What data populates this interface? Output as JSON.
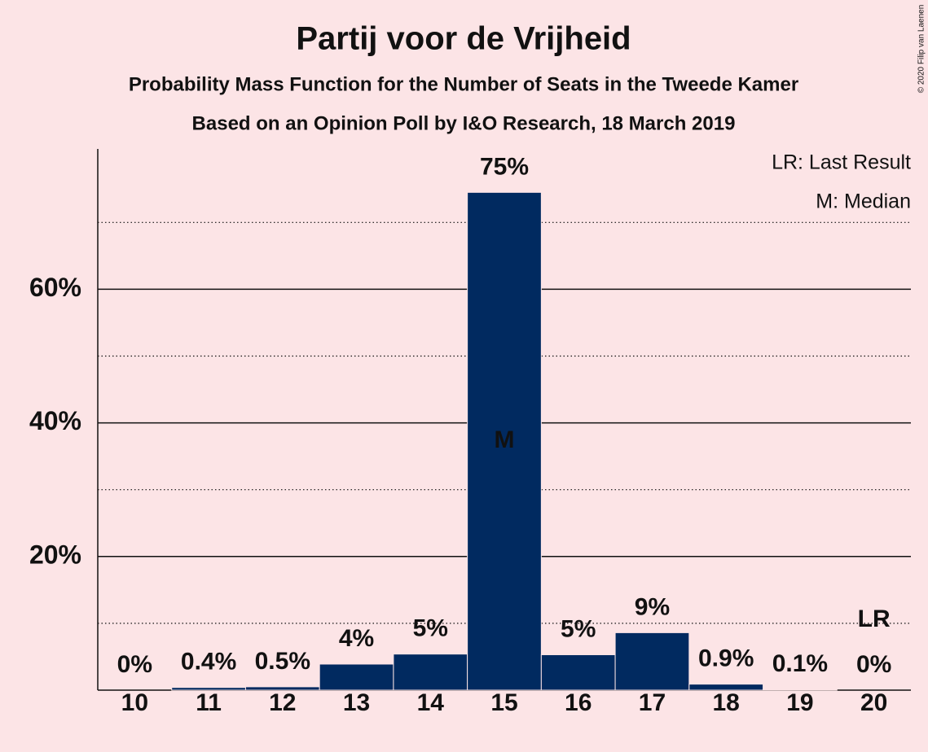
{
  "chart_data": {
    "type": "bar",
    "title": "Partij voor de Vrijheid",
    "subtitle": "Probability Mass Function for the Number of Seats in the Tweede Kamer",
    "subtitle2": "Based on an Opinion Poll by I&O Research, 18 March 2019",
    "categories": [
      "10",
      "11",
      "12",
      "13",
      "14",
      "15",
      "16",
      "17",
      "18",
      "19",
      "20"
    ],
    "values": [
      0,
      0.4,
      0.5,
      3.9,
      5.4,
      74.5,
      5.3,
      8.6,
      0.9,
      0.1,
      0
    ],
    "value_labels": [
      "0%",
      "0.4%",
      "0.5%",
      "4%",
      "5%",
      "75%",
      "5%",
      "9%",
      "0.9%",
      "0.1%",
      "0%"
    ],
    "color": "#012a60",
    "ylim": [
      0,
      81
    ],
    "yticks": [
      {
        "value": 20,
        "label": "20%"
      },
      {
        "value": 40,
        "label": "40%"
      },
      {
        "value": 60,
        "label": "60%"
      }
    ],
    "minor_gridlines": [
      10,
      30,
      50,
      70
    ],
    "grid": true,
    "annotations": [
      {
        "label": "M",
        "category": "15"
      },
      {
        "label": "LR",
        "category": "20"
      }
    ],
    "legend": [
      "LR: Last Result",
      "M: Median"
    ],
    "copyright": "© 2020 Filip van Laenen"
  }
}
